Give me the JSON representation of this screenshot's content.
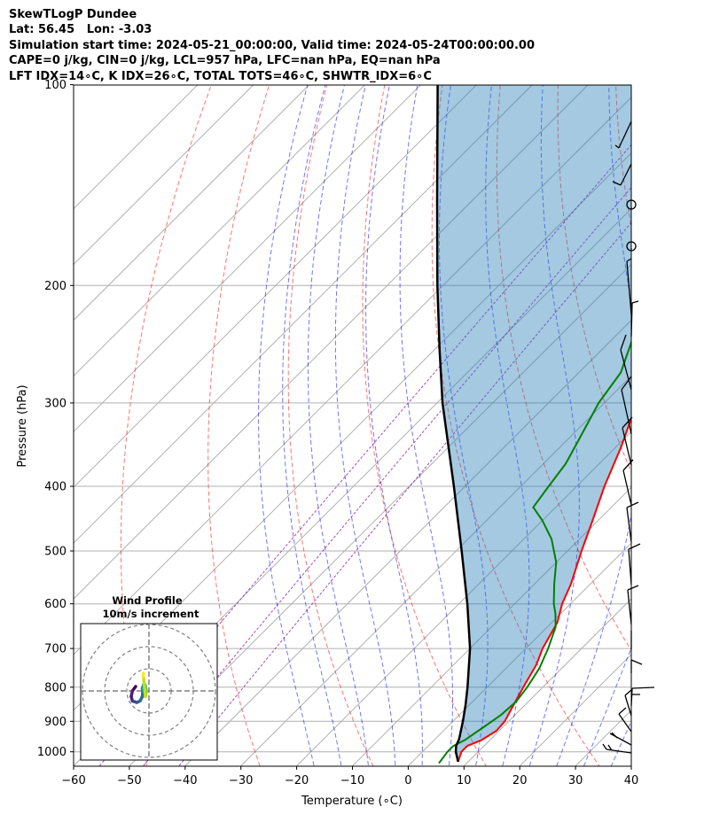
{
  "header": {
    "line1": "SkewTLogP Dundee",
    "line2": "Lat: 56.45   Lon: -3.03",
    "line3": "Simulation start time: 2024-05-21_00:00:00, Valid time: 2024-05-24T00:00:00.00",
    "line4": "CAPE=0 j/kg, CIN=0 j/kg, LCL=957 hPa, LFC=nan hPa, EQ=nan hPa",
    "line5": "LFT IDX=14∘C, K IDX=26∘C, TOTAL TOTS=46∘C, SHWTR_IDX=6∘C"
  },
  "chart_data": [
    {
      "type": "line",
      "title": "SkewTLogP Dundee",
      "xlabel": "Temperature (∘C)",
      "ylabel": "Pressure (hPa)",
      "xlim": [
        -60,
        40
      ],
      "ylim": [
        1050,
        100
      ],
      "yscale": "log",
      "skew": "temperature isotherms skewed 45 degrees",
      "grid": true,
      "xticks": [
        "−60",
        "−50",
        "−40",
        "−30",
        "−20",
        "−10",
        "0",
        "10",
        "20",
        "30",
        "40"
      ],
      "yticks": [
        "100",
        "200",
        "300",
        "400",
        "500",
        "600",
        "700",
        "800",
        "900",
        "1000"
      ],
      "series": [
        {
          "name": "temperature",
          "color": "#ff0000",
          "points": [
            [
              1035,
              8.2
            ],
            [
              1000,
              7.0
            ],
            [
              980,
              7.0
            ],
            [
              960,
              8.5
            ],
            [
              930,
              9.5
            ],
            [
              900,
              9.3
            ],
            [
              860,
              8.2
            ],
            [
              800,
              6.5
            ],
            [
              740,
              4.8
            ],
            [
              700,
              3.0
            ],
            [
              640,
              1.0
            ],
            [
              600,
              -1.5
            ],
            [
              560,
              -3.5
            ],
            [
              500,
              -7.5
            ],
            [
              450,
              -11.0
            ],
            [
              400,
              -15.0
            ],
            [
              350,
              -19.0
            ],
            [
              320,
              -22.0
            ],
            [
              300,
              -24.0
            ],
            [
              280,
              -27.0
            ],
            [
              260,
              -30.0
            ],
            [
              245,
              -32.0
            ],
            [
              230,
              -33.5
            ],
            [
              200,
              -39.0
            ],
            [
              180,
              -43.0
            ],
            [
              160,
              -47.0
            ],
            [
              150,
              -50.0
            ],
            [
              135,
              -53.0
            ],
            [
              120,
              -57.0
            ],
            [
              110,
              -59.0
            ],
            [
              100,
              -61.0
            ]
          ]
        },
        {
          "name": "dewpoint",
          "color": "#008000",
          "points": [
            [
              1040,
              5.0
            ],
            [
              1000,
              4.5
            ],
            [
              980,
              4.5
            ],
            [
              960,
              5.5
            ],
            [
              920,
              6.5
            ],
            [
              880,
              7.5
            ],
            [
              840,
              7.8
            ],
            [
              800,
              7.2
            ],
            [
              750,
              6.0
            ],
            [
              700,
              4.0
            ],
            [
              650,
              1.5
            ],
            [
              620,
              -1.0
            ],
            [
              600,
              -3.0
            ],
            [
              560,
              -6.5
            ],
            [
              520,
              -10.0
            ],
            [
              480,
              -15.0
            ],
            [
              450,
              -20.0
            ],
            [
              430,
              -24.0
            ],
            [
              400,
              -25.0
            ],
            [
              370,
              -26.0
            ],
            [
              340,
              -28.0
            ],
            [
              300,
              -31.0
            ],
            [
              270,
              -32.5
            ],
            [
              240,
              -36.5
            ],
            [
              215,
              -41.0
            ],
            [
              200,
              -45.0
            ],
            [
              185,
              -50.0
            ],
            [
              175,
              -51.0
            ],
            [
              140,
              -55.0
            ],
            [
              120,
              -58.0
            ],
            [
              100,
              -62.0
            ]
          ]
        },
        {
          "name": "parcel profile",
          "color": "#000000",
          "points": [
            [
              1035,
              8.2
            ],
            [
              1000,
              6.0
            ],
            [
              980,
              5.0
            ],
            [
              957,
              4.3
            ],
            [
              900,
              1.8
            ],
            [
              850,
              -0.7
            ],
            [
              800,
              -3.5
            ],
            [
              700,
              -10.0
            ],
            [
              600,
              -18.5
            ],
            [
              500,
              -29.0
            ],
            [
              400,
              -42.0
            ],
            [
              300,
              -59.0
            ],
            [
              250,
              -69.0
            ],
            [
              200,
              -81.0
            ],
            [
              150,
              -96.0
            ],
            [
              100,
              -117.0
            ]
          ]
        }
      ],
      "shaded_region": "area between parcel profile and temperature"
    },
    {
      "type": "scatter",
      "title": "Wind Profile",
      "subtitle": "10m/s increment",
      "description": "hodograph of wind components, coloured by height (viridis)",
      "u": [
        -6.0,
        -7.5,
        -8.0,
        -7.5,
        -5.5,
        -4.0,
        -3.0,
        -2.8,
        -3.0,
        -2.5,
        -2.2,
        -1.5,
        -1.2,
        -1.6,
        -2.2,
        -2.5,
        -2.5
      ],
      "v": [
        2.0,
        0.0,
        -2.5,
        -4.5,
        -5.2,
        -4.5,
        -2.5,
        -0.5,
        1.2,
        2.8,
        3.5,
        2.0,
        -0.5,
        -2.5,
        3.5,
        6.5,
        8.0
      ]
    }
  ]
}
